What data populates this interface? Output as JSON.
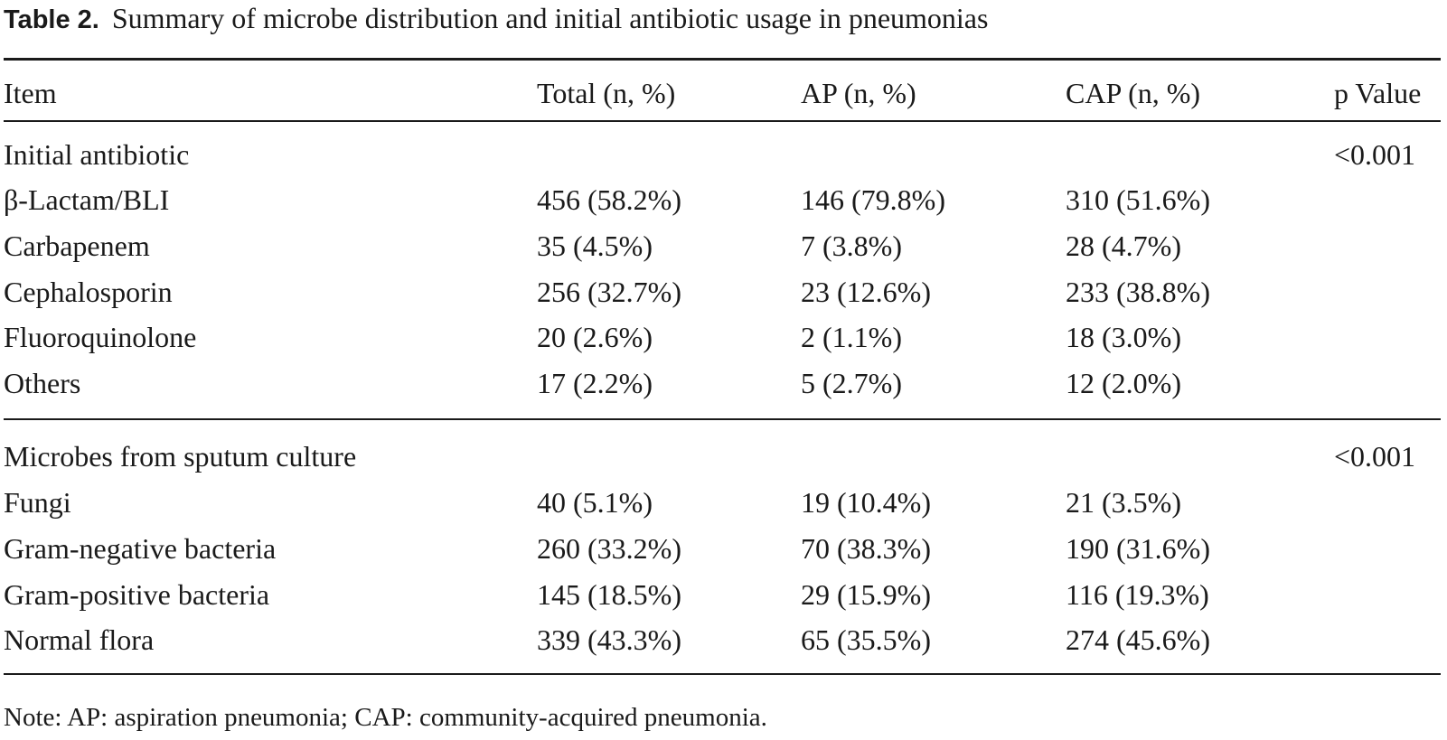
{
  "table": {
    "label": "Table 2.",
    "title": "Summary of microbe distribution and initial antibiotic usage in pneumonias",
    "headers": {
      "item": "Item",
      "total": "Total (n, %)",
      "ap": "AP (n, %)",
      "cap": "CAP (n, %)",
      "p": "p Value"
    },
    "sections": [
      {
        "heading": "Initial antibiotic",
        "p_value": "<0.001",
        "rows": [
          {
            "item": "β-Lactam/BLI",
            "total": "456 (58.2%)",
            "ap": "146 (79.8%)",
            "cap": "310 (51.6%)"
          },
          {
            "item": "Carbapenem",
            "total": "35 (4.5%)",
            "ap": "7 (3.8%)",
            "cap": "28 (4.7%)"
          },
          {
            "item": "Cephalosporin",
            "total": "256 (32.7%)",
            "ap": "23 (12.6%)",
            "cap": "233 (38.8%)"
          },
          {
            "item": "Fluoroquinolone",
            "total": "20 (2.6%)",
            "ap": "2 (1.1%)",
            "cap": "18 (3.0%)"
          },
          {
            "item": "Others",
            "total": "17 (2.2%)",
            "ap": "5 (2.7%)",
            "cap": "12 (2.0%)"
          }
        ]
      },
      {
        "heading": "Microbes from sputum culture",
        "p_value": "<0.001",
        "rows": [
          {
            "item": "Fungi",
            "total": "40 (5.1%)",
            "ap": "19 (10.4%)",
            "cap": "21 (3.5%)"
          },
          {
            "item": "Gram-negative bacteria",
            "total": "260 (33.2%)",
            "ap": "70 (38.3%)",
            "cap": "190 (31.6%)"
          },
          {
            "item": "Gram-positive bacteria",
            "total": "145 (18.5%)",
            "ap": "29 (15.9%)",
            "cap": "116 (19.3%)"
          },
          {
            "item": "Normal flora",
            "total": "339 (43.3%)",
            "ap": "65 (35.5%)",
            "cap": "274 (45.6%)"
          }
        ]
      }
    ],
    "note": "Note: AP: aspiration pneumonia; CAP: community-acquired pneumonia."
  }
}
